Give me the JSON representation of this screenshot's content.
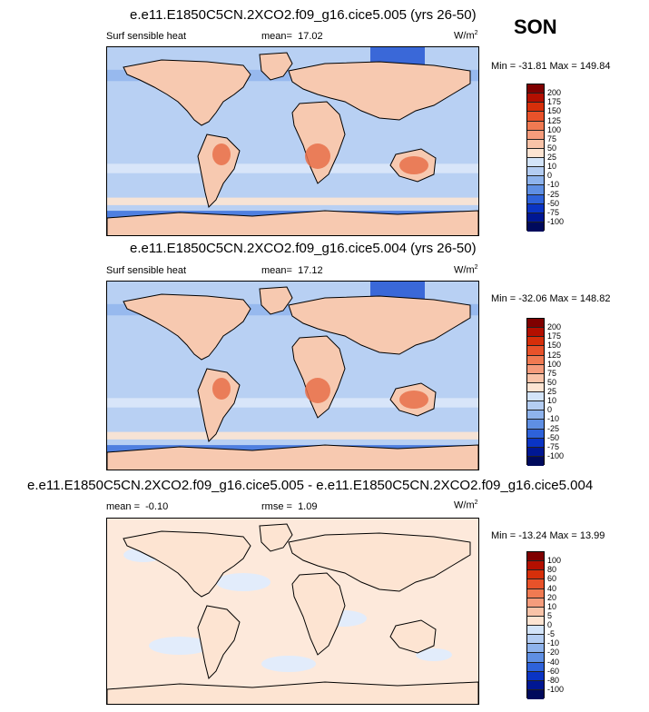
{
  "season": "SON",
  "chart_data": [
    {
      "type": "heatmap",
      "title": "e.e11.E1850C5CN.2XCO2.f09_g16.cice5.005 (yrs 26-50)",
      "left_label": "Surf sensible heat",
      "mean_label": "mean=",
      "mean_value": "17.02",
      "units": "W/m",
      "units_sup": "2",
      "min_max": "Min = -31.81 Max = 149.84",
      "colorbar": {
        "levels": [
          "200",
          "175",
          "150",
          "125",
          "100",
          "75",
          "50",
          "25",
          "10",
          "0",
          "-10",
          "-25",
          "-50",
          "-75",
          "-100"
        ],
        "colors": [
          "#7f0000",
          "#b30f00",
          "#d62f0a",
          "#e8522a",
          "#f07a52",
          "#f59c7c",
          "#f9c3a8",
          "#fde4d2",
          "#d3e4f9",
          "#b4cdf2",
          "#8eb3ec",
          "#5f8fe3",
          "#2e62da",
          "#0a34c4",
          "#001793",
          "#000a5c"
        ]
      }
    },
    {
      "type": "heatmap",
      "title": "e.e11.E1850C5CN.2XCO2.f09_g16.cice5.004 (yrs 26-50)",
      "left_label": "Surf sensible heat",
      "mean_label": "mean=",
      "mean_value": "17.12",
      "units": "W/m",
      "units_sup": "2",
      "min_max": "Min = -32.06 Max = 148.82",
      "colorbar": {
        "levels": [
          "200",
          "175",
          "150",
          "125",
          "100",
          "75",
          "50",
          "25",
          "10",
          "0",
          "-10",
          "-25",
          "-50",
          "-75",
          "-100"
        ],
        "colors": [
          "#7f0000",
          "#b30f00",
          "#d62f0a",
          "#e8522a",
          "#f07a52",
          "#f59c7c",
          "#f9c3a8",
          "#fde4d2",
          "#d3e4f9",
          "#b4cdf2",
          "#8eb3ec",
          "#5f8fe3",
          "#2e62da",
          "#0a34c4",
          "#001793",
          "#000a5c"
        ]
      }
    },
    {
      "type": "heatmap",
      "title": "e.e11.E1850C5CN.2XCO2.f09_g16.cice5.005 - e.e11.E1850C5CN.2XCO2.f09_g16.cice5.004",
      "mean_label": "mean =",
      "mean_value": "-0.10",
      "rmse_label": "rmse =",
      "rmse_value": "1.09",
      "units": "W/m",
      "units_sup": "2",
      "min_max": "Min = -13.24 Max = 13.99",
      "colorbar": {
        "levels": [
          "100",
          "80",
          "60",
          "40",
          "20",
          "10",
          "5",
          "0",
          "-5",
          "-10",
          "-20",
          "-40",
          "-60",
          "-80",
          "-100"
        ],
        "colors": [
          "#7f0000",
          "#b30f00",
          "#d62f0a",
          "#e8522a",
          "#f07a52",
          "#f59c7c",
          "#f9c3a8",
          "#fde4d2",
          "#d3e4f9",
          "#b4cdf2",
          "#8eb3ec",
          "#5f8fe3",
          "#2e62da",
          "#0a34c4",
          "#001793",
          "#000a5c"
        ]
      }
    }
  ]
}
